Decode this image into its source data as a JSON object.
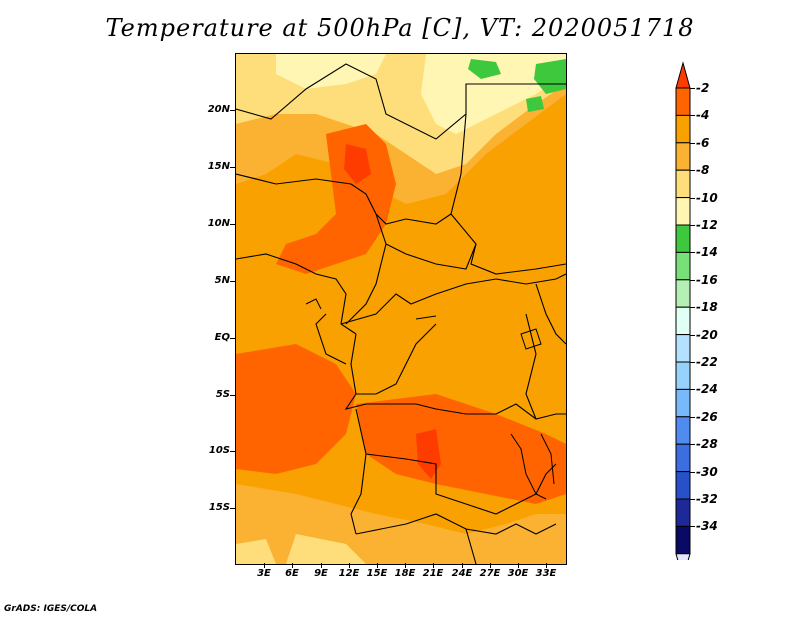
{
  "title": "Temperature at 500hPa [C], VT: 2020051718",
  "footer": "GrADS: IGES/COLA",
  "map": {
    "lat_labels": [
      "20N",
      "15N",
      "10N",
      "5N",
      "EQ",
      "5S",
      "10S",
      "15S"
    ],
    "lon_labels": [
      "3E",
      "6E",
      "9E",
      "12E",
      "15E",
      "18E",
      "21E",
      "24E",
      "27E",
      "30E",
      "33E"
    ],
    "field": "temperature_500hPa",
    "units": "C"
  },
  "colorbar": {
    "labels": [
      "-2",
      "-4",
      "-6",
      "-8",
      "-10",
      "-12",
      "-14",
      "-16",
      "-18",
      "-20",
      "-22",
      "-24",
      "-26",
      "-28",
      "-30",
      "-32",
      "-34"
    ],
    "colors": [
      "#ff3c00",
      "#ff6400",
      "#f9a100",
      "#fbb233",
      "#fede7a",
      "#fff6b4",
      "#3dc83d",
      "#78e078",
      "#b4f0b4",
      "#e1fff4",
      "#b4e1ff",
      "#96d2fa",
      "#78b9fa",
      "#508cf0",
      "#3c6ee1",
      "#2850c8",
      "#1e2896",
      "#0a0a64",
      "#e6e6fa"
    ]
  }
}
